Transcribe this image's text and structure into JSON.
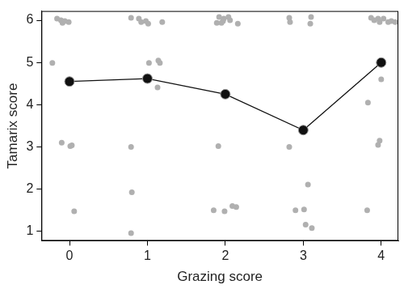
{
  "chart_data": {
    "type": "scatter",
    "x_label": "Grazing score",
    "y_label": "Tamarix score",
    "xlim": [
      -0.36,
      4.22
    ],
    "xticks": [
      0,
      1,
      2,
      3,
      4
    ],
    "ylim": [
      0.78,
      6.22
    ],
    "yticks": [
      1,
      2,
      3,
      4,
      5,
      6
    ],
    "grid": false,
    "series": [
      {
        "type": "scatter",
        "color": "#b0b0b0",
        "marker": "circle",
        "x": [
          -0.16,
          -0.11,
          -0.06,
          -0.09,
          -0.01,
          -0.22,
          -0.1,
          0.01,
          0.03,
          0.06,
          0.79,
          0.89,
          0.92,
          0.98,
          1.01,
          1.19,
          1.02,
          1.14,
          1.16,
          1.13,
          0.79,
          0.8,
          0.79,
          1.92,
          1.98,
          1.97,
          2.04,
          2.06,
          1.89,
          1.95,
          2.16,
          1.91,
          1.85,
          1.99,
          2.09,
          2.14,
          2.82,
          2.83,
          3.1,
          3.09,
          2.82,
          3.06,
          2.9,
          3.01,
          3.03,
          3.11,
          3.87,
          3.91,
          3.96,
          3.98,
          4.03,
          4.09,
          4.13,
          4.18,
          3.83,
          4.0,
          3.96,
          3.98,
          3.82
        ],
        "values": [
          6.04,
          6.0,
          5.98,
          5.94,
          5.96,
          4.99,
          3.1,
          3.02,
          3.04,
          1.48,
          6.06,
          6.04,
          5.96,
          5.98,
          5.92,
          5.96,
          4.99,
          5.05,
          4.99,
          4.41,
          3.0,
          1.93,
          0.96,
          6.08,
          6.04,
          5.98,
          6.08,
          6.0,
          5.94,
          5.94,
          5.92,
          3.02,
          1.5,
          1.48,
          1.6,
          1.58,
          6.06,
          5.96,
          6.08,
          5.92,
          3.0,
          2.11,
          1.5,
          1.52,
          1.16,
          1.08,
          6.06,
          6.0,
          6.04,
          5.96,
          6.04,
          5.96,
          5.98,
          5.96,
          4.05,
          4.6,
          3.05,
          3.15,
          1.5
        ]
      },
      {
        "type": "line",
        "color": "#111111",
        "marker": "circle",
        "line_style": "solid",
        "x": [
          0,
          1,
          2,
          3,
          4
        ],
        "values": [
          4.55,
          4.62,
          4.25,
          3.4,
          5.0
        ]
      }
    ]
  }
}
